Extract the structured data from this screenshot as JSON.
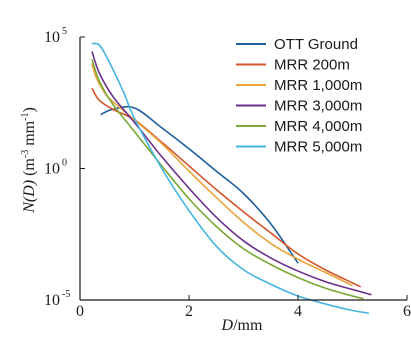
{
  "chart_data": {
    "type": "line",
    "xlabel": "D/mm",
    "xlabel_parts": {
      "var": "D",
      "unit": "/mm"
    },
    "ylabel": "N(D) (m^-3 mm^-1)",
    "ylabel_parts": {
      "var": "N(D)",
      "open": " (m",
      "exp1": "-3",
      "mid": " mm",
      "exp2": "-1",
      "close": ")"
    },
    "xlim": [
      0,
      6
    ],
    "x_ticks": [
      0,
      2,
      4,
      6
    ],
    "y_scale": "log",
    "ylim_exp": [
      -5,
      5
    ],
    "y_ticks": [
      {
        "exp": 5,
        "base": "10",
        "sup": "5"
      },
      {
        "exp": 0,
        "base": "10",
        "sup": "0"
      },
      {
        "exp": -5,
        "base": "10",
        "sup": "-5"
      }
    ],
    "grid": false,
    "legend_position": "top-right",
    "series": [
      {
        "name": "OTT Ground",
        "color": "#1f5f9e",
        "points": [
          [
            0.38,
            2.05
          ],
          [
            0.6,
            2.25
          ],
          [
            1.0,
            2.3
          ],
          [
            1.5,
            1.55
          ],
          [
            2.0,
            0.75
          ],
          [
            2.5,
            -0.1
          ],
          [
            3.0,
            -0.95
          ],
          [
            3.5,
            -2.1
          ],
          [
            4.0,
            -3.6
          ]
        ]
      },
      {
        "name": "MRR 200m",
        "color": "#d4552a",
        "points": [
          [
            0.22,
            3.05
          ],
          [
            0.35,
            2.6
          ],
          [
            0.6,
            2.25
          ],
          [
            1.0,
            1.85
          ],
          [
            1.5,
            1.0
          ],
          [
            2.0,
            0.1
          ],
          [
            2.5,
            -0.8
          ],
          [
            3.0,
            -1.65
          ],
          [
            3.5,
            -2.45
          ],
          [
            4.0,
            -3.25
          ],
          [
            4.5,
            -3.85
          ],
          [
            5.0,
            -4.35
          ],
          [
            5.15,
            -4.5
          ]
        ]
      },
      {
        "name": "MRR 1,000m",
        "color": "#eaa43a",
        "points": [
          [
            0.22,
            4.0
          ],
          [
            0.3,
            3.45
          ],
          [
            0.5,
            2.75
          ],
          [
            0.8,
            2.2
          ],
          [
            1.0,
            1.85
          ],
          [
            1.5,
            0.95
          ],
          [
            2.0,
            -0.1
          ],
          [
            2.5,
            -1.1
          ],
          [
            3.0,
            -2.05
          ],
          [
            3.5,
            -2.85
          ],
          [
            4.0,
            -3.45
          ],
          [
            4.5,
            -3.95
          ],
          [
            5.0,
            -4.45
          ]
        ]
      },
      {
        "name": "MRR 3,000m",
        "color": "#6a2f8a",
        "points": [
          [
            0.22,
            4.45
          ],
          [
            0.35,
            3.65
          ],
          [
            0.6,
            2.75
          ],
          [
            1.0,
            1.75
          ],
          [
            1.5,
            0.45
          ],
          [
            2.0,
            -0.75
          ],
          [
            2.5,
            -1.85
          ],
          [
            3.0,
            -2.75
          ],
          [
            3.5,
            -3.4
          ],
          [
            4.0,
            -3.9
          ],
          [
            4.5,
            -4.3
          ],
          [
            5.0,
            -4.6
          ],
          [
            5.35,
            -4.8
          ]
        ]
      },
      {
        "name": "MRR 4,000m",
        "color": "#7aa834",
        "points": [
          [
            0.22,
            4.15
          ],
          [
            0.35,
            3.35
          ],
          [
            0.6,
            2.45
          ],
          [
            1.0,
            1.4
          ],
          [
            1.5,
            0.1
          ],
          [
            2.0,
            -1.15
          ],
          [
            2.5,
            -2.2
          ],
          [
            3.0,
            -3.05
          ],
          [
            3.5,
            -3.65
          ],
          [
            4.0,
            -4.15
          ],
          [
            4.5,
            -4.55
          ],
          [
            5.0,
            -4.85
          ],
          [
            5.2,
            -4.95
          ]
        ]
      },
      {
        "name": "MRR 5,000m",
        "color": "#45b5e0",
        "points": [
          [
            0.22,
            4.75
          ],
          [
            0.35,
            4.7
          ],
          [
            0.5,
            4.2
          ],
          [
            0.8,
            2.9
          ],
          [
            1.0,
            1.9
          ],
          [
            1.5,
            0.0
          ],
          [
            2.0,
            -1.6
          ],
          [
            2.5,
            -2.95
          ],
          [
            3.0,
            -3.85
          ],
          [
            3.5,
            -4.4
          ],
          [
            4.0,
            -4.85
          ],
          [
            4.5,
            -5.15
          ],
          [
            5.0,
            -5.4
          ],
          [
            5.3,
            -5.5
          ]
        ]
      }
    ]
  }
}
